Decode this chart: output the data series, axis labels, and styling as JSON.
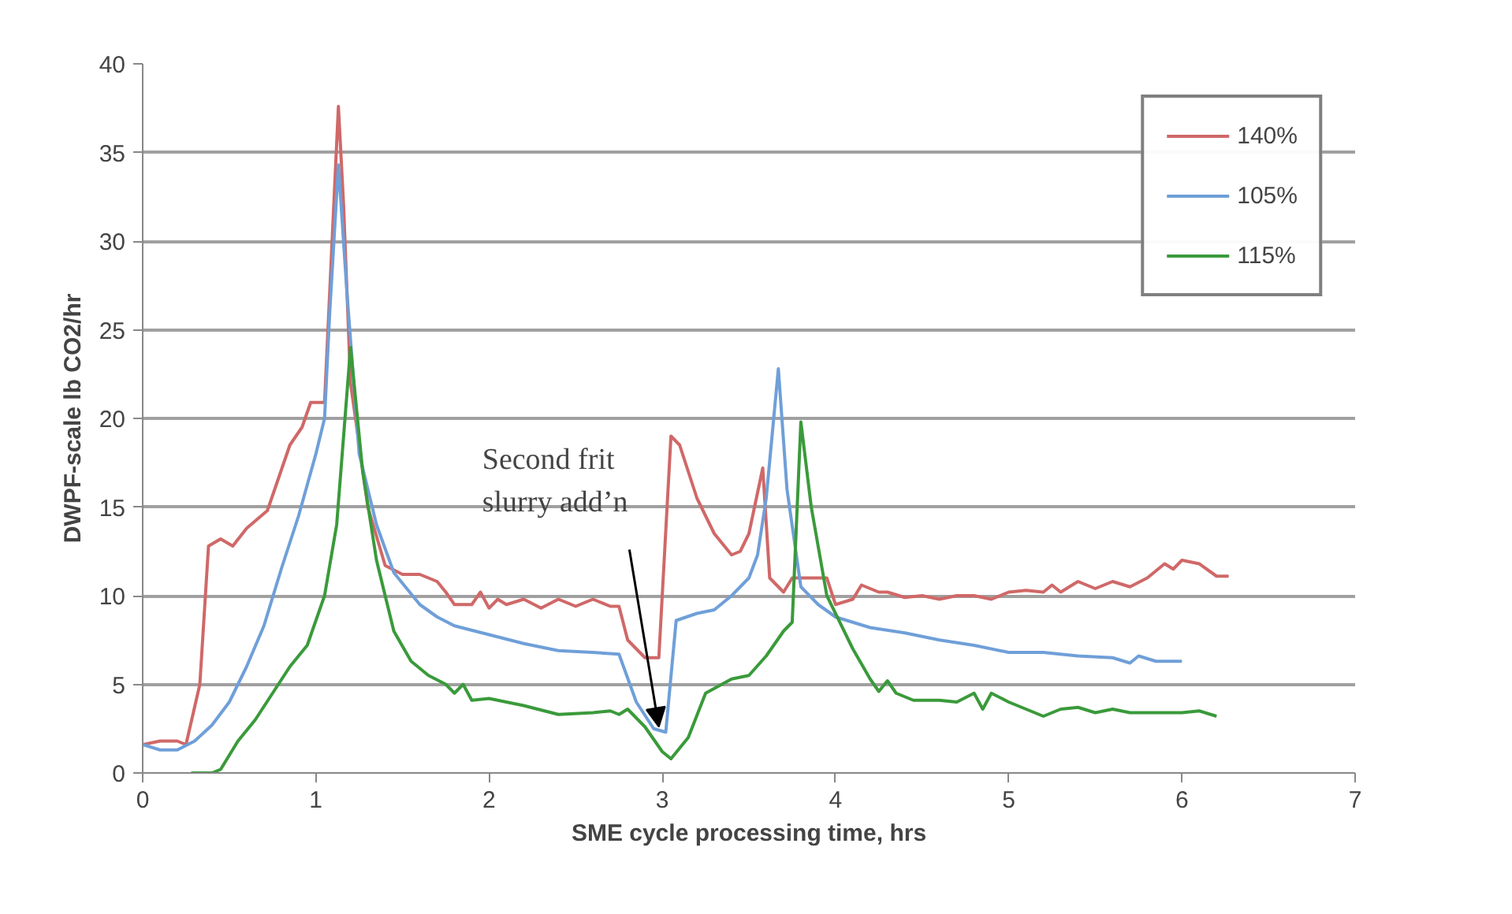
{
  "chart_data": {
    "type": "line",
    "xlabel": "SME cycle processing time, hrs",
    "ylabel": "DWPF-scale lb CO2/hr",
    "xlim": [
      0,
      7
    ],
    "xticks": [
      0,
      1,
      2,
      3,
      4,
      5,
      6,
      7
    ],
    "ylim": [
      0,
      40
    ],
    "yticks": [
      0,
      5,
      10,
      15,
      20,
      25,
      30,
      35,
      40
    ],
    "grid": "y",
    "legend": "top right",
    "marker": "none",
    "line_style": "solid",
    "annotations": [
      {
        "text": "Second frit\nslurry add’n",
        "x": 2.98,
        "y": 2.6
      }
    ],
    "series": [
      {
        "name": "140%",
        "color": "#d06868",
        "x": [
          0,
          0.1,
          0.2,
          0.25,
          0.33,
          0.38,
          0.45,
          0.52,
          0.6,
          0.72,
          0.85,
          0.92,
          0.97,
          1.05,
          1.13,
          1.16,
          1.2,
          1.3,
          1.4,
          1.5,
          1.6,
          1.7,
          1.75,
          1.8,
          1.9,
          1.95,
          2.0,
          2.05,
          2.1,
          2.2,
          2.3,
          2.4,
          2.5,
          2.6,
          2.7,
          2.75,
          2.8,
          2.9,
          2.98,
          3.05,
          3.1,
          3.2,
          3.3,
          3.4,
          3.45,
          3.5,
          3.58,
          3.62,
          3.7,
          3.75,
          3.85,
          3.95,
          4.0,
          4.1,
          4.15,
          4.25,
          4.3,
          4.4,
          4.5,
          4.6,
          4.7,
          4.8,
          4.9,
          5.0,
          5.1,
          5.2,
          5.25,
          5.3,
          5.4,
          5.5,
          5.6,
          5.7,
          5.8,
          5.9,
          5.95,
          6.0,
          6.1,
          6.2,
          6.27
        ],
        "values": [
          1.6,
          1.8,
          1.8,
          1.6,
          5,
          12.8,
          13.2,
          12.8,
          13.8,
          14.8,
          18.5,
          19.5,
          20.9,
          20.9,
          37.6,
          32,
          22,
          15,
          11.7,
          11.2,
          11.2,
          10.8,
          10.2,
          9.5,
          9.5,
          10.2,
          9.3,
          9.8,
          9.5,
          9.8,
          9.3,
          9.8,
          9.4,
          9.8,
          9.4,
          9.4,
          7.5,
          6.5,
          6.5,
          19,
          18.5,
          15.5,
          13.5,
          12.3,
          12.5,
          13.5,
          17.2,
          11,
          10.2,
          11,
          11,
          11,
          9.5,
          9.8,
          10.6,
          10.2,
          10.2,
          9.9,
          10,
          9.8,
          10,
          10,
          9.8,
          10.2,
          10.3,
          10.2,
          10.6,
          10.2,
          10.8,
          10.4,
          10.8,
          10.5,
          11,
          11.8,
          11.5,
          12,
          11.8,
          11.1,
          11.1
        ]
      },
      {
        "name": "105%",
        "color": "#6f9fd8",
        "x": [
          0,
          0.1,
          0.2,
          0.3,
          0.4,
          0.5,
          0.6,
          0.7,
          0.8,
          0.9,
          1.0,
          1.05,
          1.08,
          1.13,
          1.18,
          1.25,
          1.35,
          1.45,
          1.6,
          1.7,
          1.8,
          2.0,
          2.2,
          2.4,
          2.6,
          2.75,
          2.85,
          2.95,
          3.02,
          3.08,
          3.2,
          3.3,
          3.4,
          3.5,
          3.55,
          3.6,
          3.67,
          3.72,
          3.8,
          3.9,
          4.0,
          4.2,
          4.4,
          4.6,
          4.8,
          5.0,
          5.2,
          5.4,
          5.6,
          5.7,
          5.75,
          5.85,
          6.0
        ],
        "values": [
          1.6,
          1.3,
          1.3,
          1.8,
          2.7,
          4,
          6,
          8.3,
          11.5,
          14.5,
          18,
          20,
          26,
          34.3,
          27,
          18,
          14,
          11.3,
          9.5,
          8.8,
          8.3,
          7.8,
          7.3,
          6.9,
          6.8,
          6.7,
          4,
          2.5,
          2.3,
          8.6,
          9,
          9.2,
          10,
          11,
          12.3,
          15.5,
          22.8,
          16,
          10.5,
          9.5,
          8.8,
          8.2,
          7.9,
          7.5,
          7.2,
          6.8,
          6.8,
          6.6,
          6.5,
          6.2,
          6.6,
          6.3,
          6.3
        ]
      },
      {
        "name": "115%",
        "color": "#3a9a3a",
        "x": [
          0.28,
          0.4,
          0.45,
          0.55,
          0.65,
          0.75,
          0.85,
          0.95,
          1.05,
          1.12,
          1.2,
          1.27,
          1.35,
          1.45,
          1.55,
          1.65,
          1.75,
          1.8,
          1.85,
          1.9,
          2.0,
          2.2,
          2.4,
          2.6,
          2.7,
          2.75,
          2.8,
          2.9,
          3.0,
          3.05,
          3.15,
          3.25,
          3.4,
          3.5,
          3.6,
          3.7,
          3.75,
          3.8,
          3.86,
          3.95,
          4.1,
          4.2,
          4.25,
          4.3,
          4.35,
          4.45,
          4.6,
          4.7,
          4.8,
          4.85,
          4.9,
          5.0,
          5.1,
          5.2,
          5.3,
          5.4,
          5.5,
          5.6,
          5.7,
          5.8,
          6.0,
          6.1,
          6.2
        ],
        "values": [
          0,
          0,
          0.2,
          1.8,
          3,
          4.5,
          6,
          7.2,
          10,
          14,
          24,
          17,
          12,
          8,
          6.3,
          5.5,
          5,
          4.5,
          5,
          4.1,
          4.2,
          3.8,
          3.3,
          3.4,
          3.5,
          3.3,
          3.6,
          2.6,
          1.2,
          0.8,
          2,
          4.5,
          5.3,
          5.5,
          6.6,
          8,
          8.5,
          19.8,
          15,
          10,
          7,
          5.3,
          4.6,
          5.2,
          4.5,
          4.1,
          4.1,
          4.0,
          4.5,
          3.6,
          4.5,
          4.0,
          3.6,
          3.2,
          3.6,
          3.7,
          3.4,
          3.6,
          3.4,
          3.4,
          3.4,
          3.5,
          3.2
        ]
      }
    ]
  }
}
